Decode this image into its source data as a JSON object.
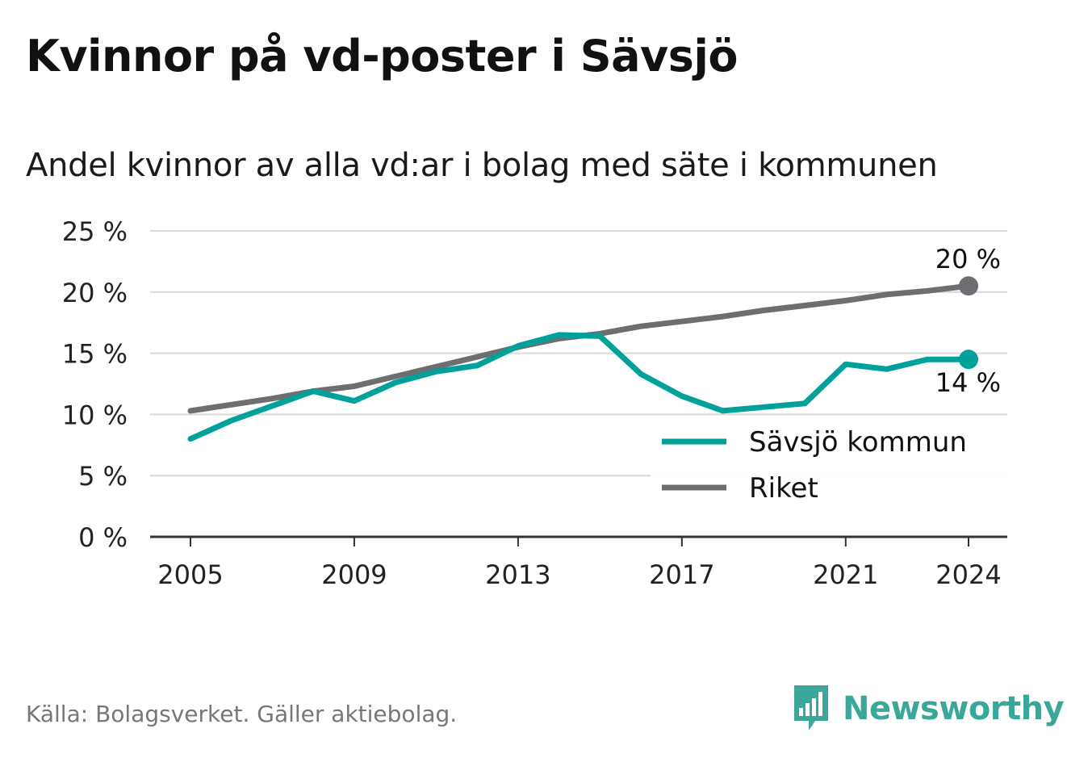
{
  "title": "Kvinnor på vd-poster i Sävsjö",
  "subtitle": "Andel kvinnor av alla vd:ar i bolag med säte i kommunen",
  "source": "Källa: Bolagsverket. Gäller aktiebolag.",
  "brand": "Newsworthy",
  "colors": {
    "savsjo": "#00a19a",
    "riket": "#6e6d72",
    "grid": "#d9d9d9",
    "axis": "#333333"
  },
  "chart_data": {
    "type": "line",
    "x": [
      2005,
      2006,
      2007,
      2008,
      2009,
      2010,
      2011,
      2012,
      2013,
      2014,
      2015,
      2016,
      2017,
      2018,
      2019,
      2020,
      2021,
      2022,
      2023,
      2024
    ],
    "series": [
      {
        "name": "Sävsjö kommun",
        "color": "#00a19a",
        "values": [
          8.0,
          9.5,
          10.7,
          11.9,
          11.1,
          12.6,
          13.5,
          14.0,
          15.6,
          16.5,
          16.4,
          13.3,
          11.5,
          10.3,
          10.6,
          10.9,
          14.1,
          13.7,
          14.5,
          14.5
        ],
        "end_label": "14 %"
      },
      {
        "name": "Riket",
        "color": "#6e6d72",
        "values": [
          10.3,
          10.8,
          11.3,
          11.9,
          12.3,
          13.1,
          13.9,
          14.7,
          15.5,
          16.2,
          16.6,
          17.2,
          17.6,
          18.0,
          18.5,
          18.9,
          19.3,
          19.8,
          20.1,
          20.5
        ],
        "end_label": "20 %"
      }
    ],
    "y_ticks": [
      "0 %",
      "5 %",
      "10 %",
      "15 %",
      "20 %",
      "25 %"
    ],
    "y_tick_values": [
      0,
      5,
      10,
      15,
      20,
      25
    ],
    "x_ticks": [
      "2005",
      "2009",
      "2013",
      "2017",
      "2021",
      "2024"
    ],
    "x_tick_values": [
      2005,
      2009,
      2013,
      2017,
      2021,
      2024
    ],
    "ylim": [
      0,
      25
    ],
    "xlim": [
      2005,
      2024
    ],
    "grid": true,
    "legend_position": "bottom-right"
  }
}
